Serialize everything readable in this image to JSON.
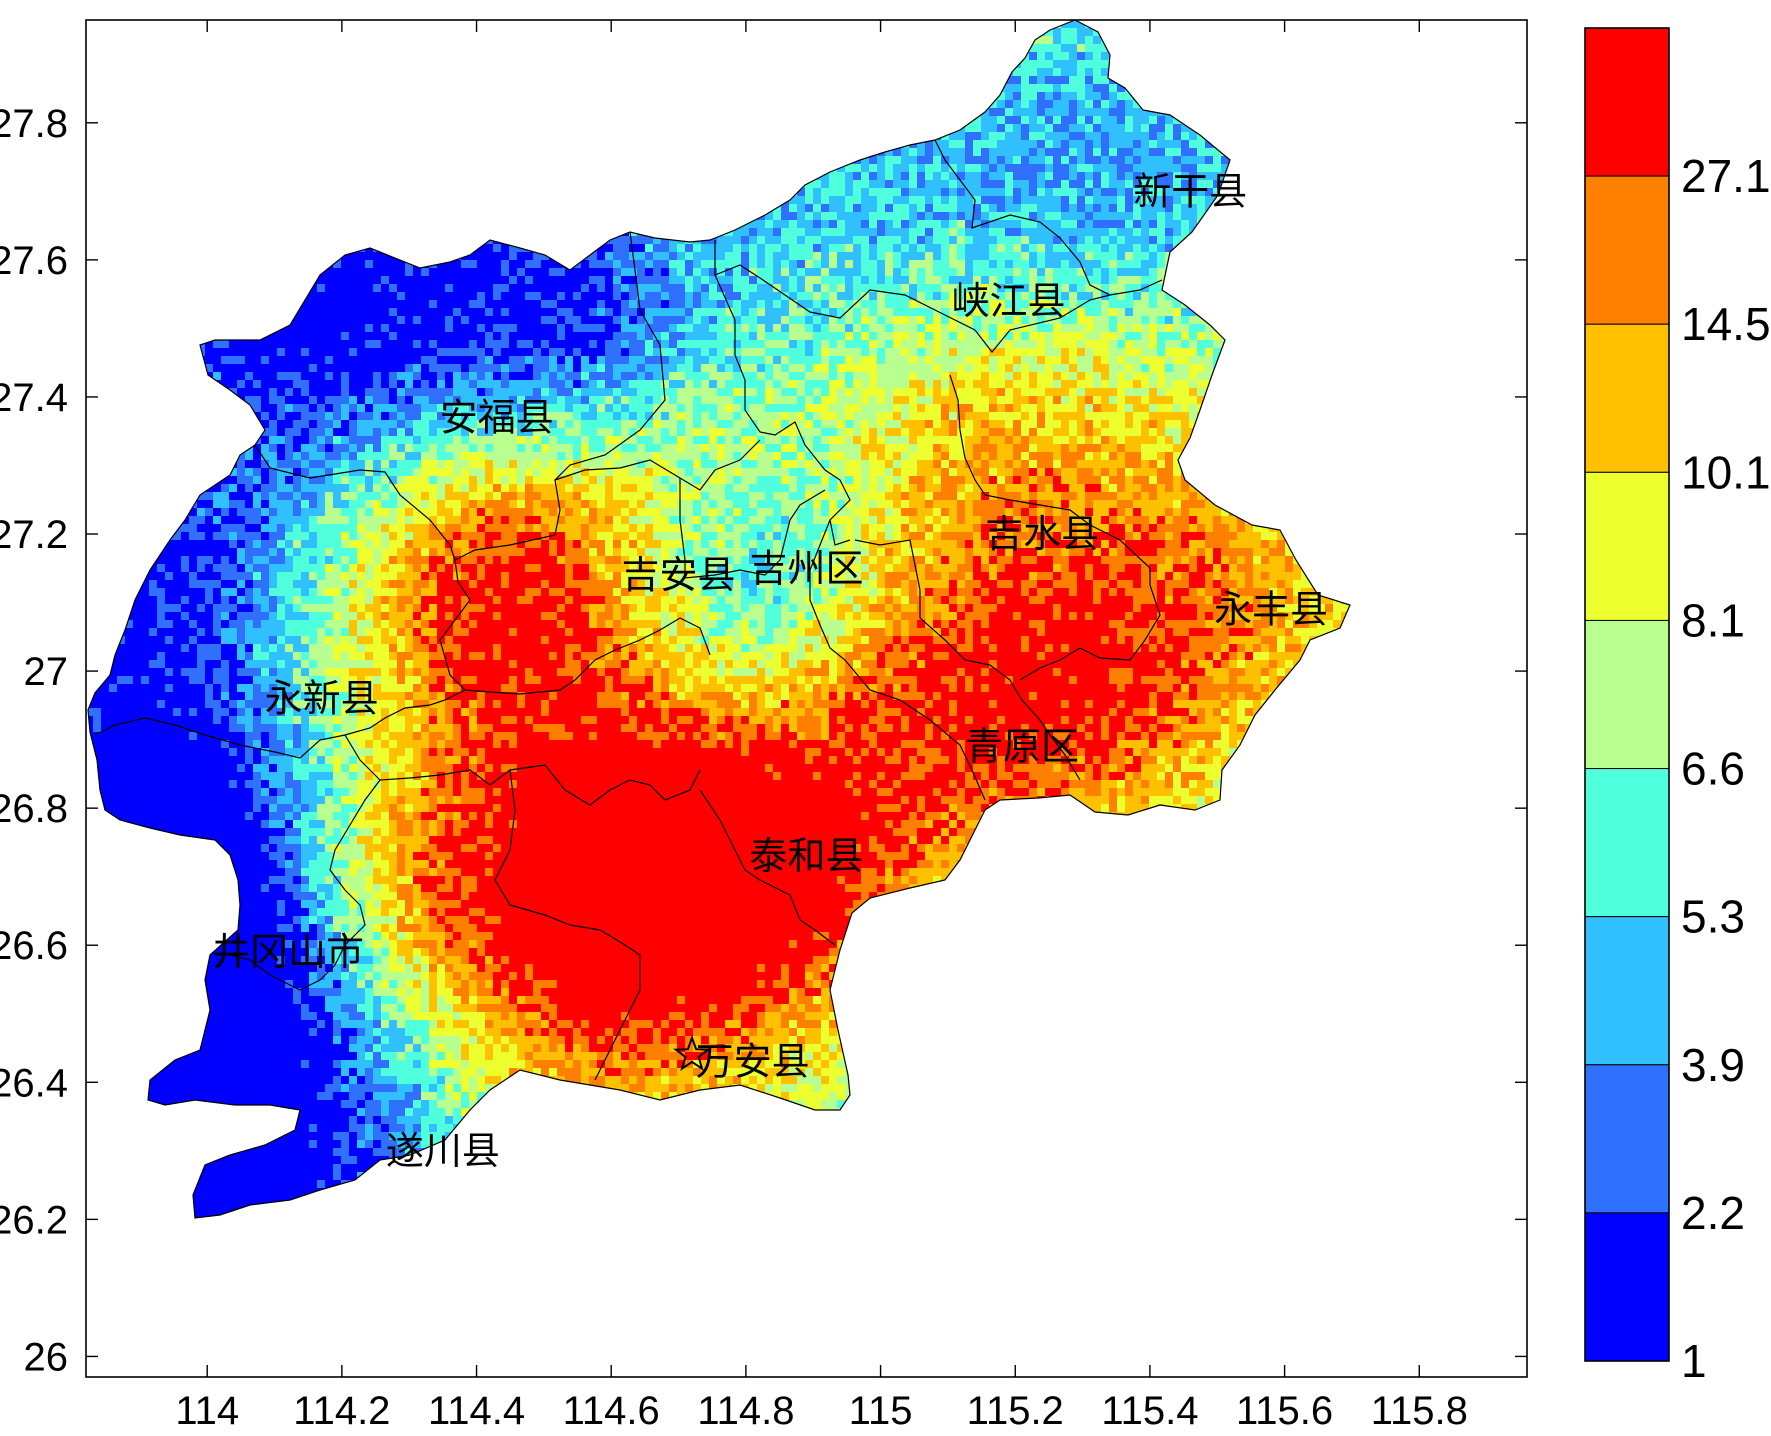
{
  "map": {
    "x_ticks": [
      "114",
      "114.2",
      "114.4",
      "114.6",
      "114.8",
      "115",
      "115.2",
      "115.4",
      "115.6",
      "115.8"
    ],
    "y_ticks": [
      "27.8",
      "27.6",
      "27.4",
      "27.2",
      "27",
      "26.8",
      "26.6",
      "26.4",
      "26.2",
      "26"
    ],
    "x_range": [
      113.82,
      115.96
    ],
    "y_range": [
      25.97,
      27.95
    ],
    "counties": [
      {
        "name": "新干县",
        "lon": 115.46,
        "lat": 27.7
      },
      {
        "name": "峡江县",
        "lon": 115.19,
        "lat": 27.54
      },
      {
        "name": "安福县",
        "lon": 114.43,
        "lat": 27.37
      },
      {
        "name": "吉水县",
        "lon": 115.24,
        "lat": 27.2
      },
      {
        "name": "吉安县",
        "lon": 114.7,
        "lat": 27.14
      },
      {
        "name": "吉州区",
        "lon": 114.89,
        "lat": 27.15
      },
      {
        "name": "永丰县",
        "lon": 115.58,
        "lat": 27.09
      },
      {
        "name": "永新县",
        "lon": 114.17,
        "lat": 26.96
      },
      {
        "name": "青原区",
        "lon": 115.21,
        "lat": 26.89
      },
      {
        "name": "泰和县",
        "lon": 114.89,
        "lat": 26.73
      },
      {
        "name": "井冈山市",
        "lon": 114.12,
        "lat": 26.59
      },
      {
        "name": "万安县",
        "lon": 114.81,
        "lat": 26.43
      },
      {
        "name": "遂川县",
        "lon": 114.35,
        "lat": 26.3
      }
    ],
    "star_marker": {
      "lon": 114.72,
      "lat": 26.44
    }
  },
  "colorbar": {
    "labels": [
      "27.1",
      "14.5",
      "10.1",
      "8.1",
      "6.6",
      "5.3",
      "3.9",
      "2.2",
      "1"
    ],
    "colors": [
      "#ff0000",
      "#ff7f00",
      "#ffc000",
      "#eeff30",
      "#b8ff90",
      "#50ffdc",
      "#30c0ff",
      "#3070ff",
      "#0000ff"
    ]
  }
}
